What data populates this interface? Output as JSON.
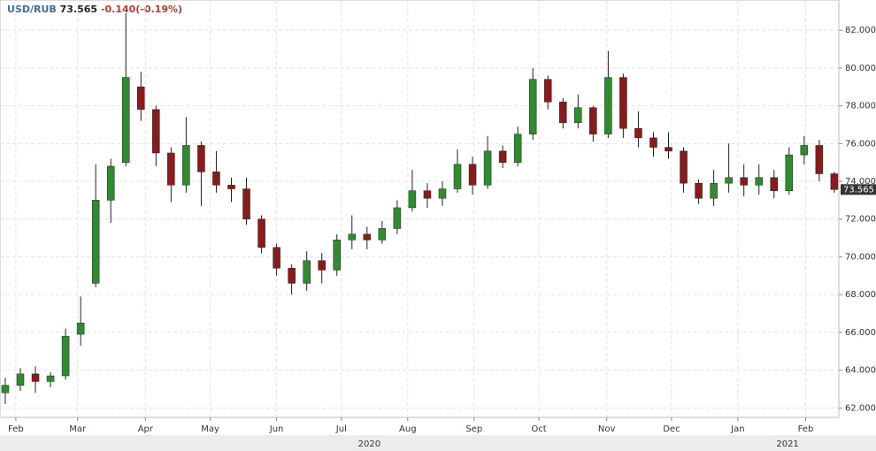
{
  "chart_data": {
    "type": "candlestick",
    "title": "USD/RUB",
    "last": 73.565,
    "change": {
      "value": -0.14,
      "label": "-0.140"
    },
    "change_pct": {
      "value": -0.19,
      "label": "(-0.19%)"
    },
    "up_color": "#2e8b2e",
    "down_color": "#8b1a1a",
    "grid": true,
    "open": [
      62.8,
      63.2,
      63.8,
      63.4,
      63.7,
      65.9,
      68.6,
      73.0,
      75.0,
      79.0,
      77.8,
      75.5,
      73.8,
      75.9,
      74.5,
      73.8,
      73.6,
      72.0,
      70.5,
      69.4,
      68.6,
      69.8,
      69.3,
      70.9,
      71.2,
      70.9,
      71.5,
      72.6,
      73.5,
      73.1,
      73.6,
      74.9,
      73.8,
      75.6,
      75.0,
      76.5,
      79.4,
      78.2,
      77.1,
      77.9,
      76.5,
      79.5,
      76.8,
      76.3,
      75.8,
      75.6,
      73.9,
      73.1,
      73.9,
      74.2,
      73.8,
      74.2,
      73.5,
      75.4,
      75.9,
      74.4
    ],
    "high": [
      63.6,
      64.1,
      64.2,
      63.9,
      66.2,
      67.9,
      74.9,
      75.2,
      82.9,
      79.8,
      78.0,
      75.8,
      77.4,
      76.1,
      75.6,
      74.2,
      74.2,
      72.2,
      70.7,
      69.6,
      70.3,
      70.2,
      71.2,
      72.2,
      71.6,
      71.9,
      73.0,
      74.6,
      73.9,
      74.0,
      75.7,
      75.3,
      76.4,
      75.9,
      76.9,
      80.0,
      79.6,
      78.4,
      78.6,
      78.0,
      80.9,
      79.7,
      77.7,
      76.6,
      76.6,
      75.8,
      74.1,
      74.6,
      76.0,
      74.9,
      74.9,
      74.6,
      75.8,
      76.4,
      76.2,
      74.5
    ],
    "low": [
      62.2,
      62.9,
      62.8,
      63.1,
      63.5,
      65.3,
      68.4,
      71.8,
      74.8,
      77.2,
      74.8,
      72.9,
      73.4,
      72.7,
      73.4,
      72.9,
      71.7,
      70.2,
      69.0,
      68.0,
      68.2,
      68.6,
      69.0,
      70.4,
      70.4,
      70.7,
      71.2,
      72.4,
      72.6,
      72.7,
      73.4,
      73.3,
      73.6,
      74.7,
      74.8,
      76.2,
      77.8,
      76.8,
      76.8,
      76.1,
      76.3,
      76.3,
      75.8,
      75.3,
      75.2,
      73.4,
      72.8,
      72.7,
      73.4,
      73.2,
      73.3,
      73.1,
      73.3,
      74.9,
      74.0,
      73.4
    ],
    "close": [
      63.2,
      63.8,
      63.4,
      63.7,
      65.8,
      66.5,
      73.0,
      74.8,
      79.5,
      77.8,
      75.5,
      73.8,
      75.9,
      74.5,
      73.8,
      73.6,
      72.0,
      70.5,
      69.4,
      68.6,
      69.8,
      69.3,
      70.9,
      71.2,
      70.9,
      71.5,
      72.6,
      73.5,
      73.1,
      73.6,
      74.9,
      73.8,
      75.6,
      75.0,
      76.5,
      79.4,
      78.2,
      77.1,
      77.9,
      76.5,
      79.5,
      76.8,
      76.3,
      75.8,
      75.6,
      73.9,
      73.1,
      73.9,
      74.2,
      73.8,
      74.2,
      73.5,
      75.4,
      75.9,
      74.4,
      73.565
    ],
    "xlim": [
      -0.35,
      55.3
    ],
    "xticks": [
      {
        "value": 0.7,
        "label": "Feb"
      },
      {
        "value": 4.8,
        "label": "Mar"
      },
      {
        "value": 9.3,
        "label": "Apr"
      },
      {
        "value": 13.6,
        "label": "May"
      },
      {
        "value": 18.0,
        "label": "Jun"
      },
      {
        "value": 22.3,
        "label": "Jul"
      },
      {
        "value": 26.7,
        "label": "Aug"
      },
      {
        "value": 31.1,
        "label": "Sep"
      },
      {
        "value": 35.4,
        "label": "Oct"
      },
      {
        "value": 39.9,
        "label": "Nov"
      },
      {
        "value": 44.2,
        "label": "Dec"
      },
      {
        "value": 48.6,
        "label": "Jan"
      },
      {
        "value": 53.1,
        "label": "Feb"
      }
    ],
    "year_ticks": [
      {
        "value": 24.15,
        "label": "2020"
      },
      {
        "value": 51.9,
        "label": "2021"
      }
    ],
    "ylim": [
      61.5,
      83.6
    ],
    "yticks": [
      {
        "value": 62,
        "label": "62.000"
      },
      {
        "value": 64,
        "label": "64.000"
      },
      {
        "value": 66,
        "label": "66.000"
      },
      {
        "value": 68,
        "label": "68.000"
      },
      {
        "value": 70,
        "label": "70.000"
      },
      {
        "value": 72,
        "label": "72.000"
      },
      {
        "value": 74,
        "label": "74.000"
      },
      {
        "value": 76,
        "label": "76.000"
      },
      {
        "value": 78,
        "label": "78.000"
      },
      {
        "value": 80,
        "label": "80.000"
      },
      {
        "value": 82,
        "label": "82.000"
      }
    ]
  }
}
